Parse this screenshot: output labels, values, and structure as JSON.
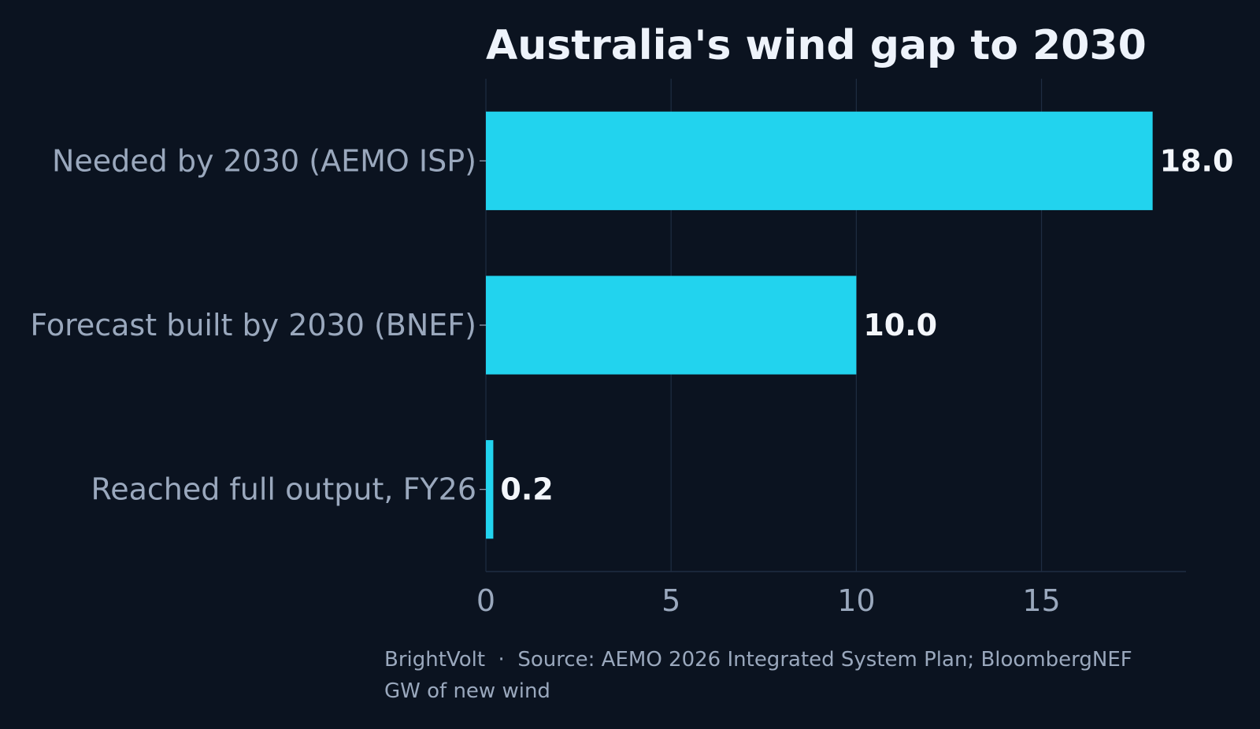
{
  "chart_data": {
    "type": "bar",
    "orientation": "horizontal",
    "title": "Australia's wind gap to 2030",
    "categories": [
      "Needed by 2030 (AEMO ISP)",
      "Forecast built by 2030 (BNEF)",
      "Reached full output, FY26"
    ],
    "values": [
      18.0,
      10.0,
      0.2
    ],
    "value_labels": [
      "18.0",
      "10.0",
      "0.2"
    ],
    "xlim": [
      0,
      18.9
    ],
    "x_ticks": [
      0,
      5,
      10,
      15
    ],
    "x_tick_labels": [
      "0",
      "5",
      "10",
      "15"
    ],
    "grid": "vertical",
    "legend": "none",
    "xlabel": "",
    "ylabel": ""
  },
  "footer": {
    "source": "BrightVolt  ·  Source: AEMO 2026 Integrated System Plan; BloombergNEF",
    "unit_note": "GW of new wind"
  },
  "colors": {
    "background": "#0b1320",
    "bar": "#22d3ee",
    "grid": "#1f2d42",
    "axis_text": "#9aa8bd",
    "title_text": "#eef3fb",
    "value_text": "#f3f6fb"
  }
}
